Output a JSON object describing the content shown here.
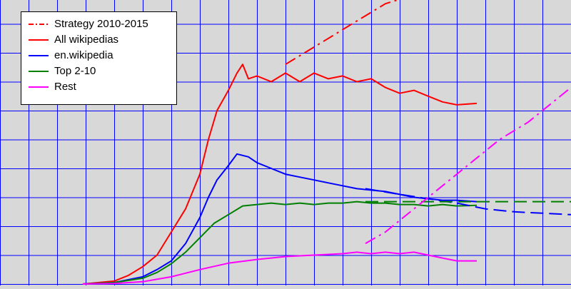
{
  "chart_data": {
    "type": "line",
    "title": "",
    "xlabel": "",
    "ylabel": "",
    "grid": true,
    "legend_position": "top-left",
    "xlim": [
      0,
      20
    ],
    "ylim": [
      0,
      10
    ],
    "series": [
      {
        "name": "Strategy 2010-2015",
        "style": "dash-dot",
        "color": "#ff0000",
        "points": [
          [
            10,
            7.6
          ],
          [
            10.5,
            7.9
          ],
          [
            11.5,
            8.5
          ],
          [
            12.5,
            9.1
          ],
          [
            13.5,
            9.7
          ],
          [
            14.5,
            10
          ]
        ]
      },
      {
        "name": "All wikipedias",
        "style": "solid",
        "color": "#ff0000",
        "points": [
          [
            2.9,
            0
          ],
          [
            4,
            0.1
          ],
          [
            4.5,
            0.3
          ],
          [
            5,
            0.6
          ],
          [
            5.5,
            1
          ],
          [
            6,
            1.8
          ],
          [
            6.5,
            2.6
          ],
          [
            7,
            3.8
          ],
          [
            7.3,
            5
          ],
          [
            7.6,
            6
          ],
          [
            8,
            6.7
          ],
          [
            8.3,
            7.3
          ],
          [
            8.5,
            7.6
          ],
          [
            8.7,
            7.1
          ],
          [
            9,
            7.2
          ],
          [
            9.5,
            7.0
          ],
          [
            10,
            7.3
          ],
          [
            10.5,
            7.0
          ],
          [
            11,
            7.3
          ],
          [
            11.5,
            7.1
          ],
          [
            12,
            7.2
          ],
          [
            12.5,
            7.0
          ],
          [
            13,
            7.1
          ],
          [
            13.5,
            6.8
          ],
          [
            14,
            6.6
          ],
          [
            14.5,
            6.7
          ],
          [
            15,
            6.5
          ],
          [
            15.5,
            6.3
          ],
          [
            16,
            6.2
          ],
          [
            16.7,
            6.25
          ]
        ]
      },
      {
        "name": "en.wikipedia",
        "style": "solid",
        "color": "#0000ff",
        "points": [
          [
            2.9,
            0
          ],
          [
            4,
            0.05
          ],
          [
            5,
            0.25
          ],
          [
            5.5,
            0.5
          ],
          [
            6,
            0.8
          ],
          [
            6.5,
            1.4
          ],
          [
            7,
            2.3
          ],
          [
            7.3,
            3.0
          ],
          [
            7.6,
            3.6
          ],
          [
            8,
            4.1
          ],
          [
            8.3,
            4.5
          ],
          [
            8.7,
            4.4
          ],
          [
            9,
            4.2
          ],
          [
            9.5,
            4.0
          ],
          [
            10,
            3.8
          ],
          [
            10.5,
            3.7
          ],
          [
            11,
            3.6
          ],
          [
            11.5,
            3.5
          ],
          [
            12,
            3.4
          ],
          [
            12.5,
            3.3
          ],
          [
            13,
            3.25
          ],
          [
            13.5,
            3.2
          ],
          [
            14,
            3.1
          ],
          [
            14.5,
            3.0
          ],
          [
            15,
            2.95
          ],
          [
            15.5,
            2.9
          ],
          [
            16,
            2.9
          ],
          [
            16.7,
            2.85
          ]
        ]
      },
      {
        "name": "Top 2-10",
        "style": "solid",
        "color": "#008000",
        "points": [
          [
            2.9,
            0
          ],
          [
            4,
            0.05
          ],
          [
            5,
            0.2
          ],
          [
            5.5,
            0.4
          ],
          [
            6,
            0.7
          ],
          [
            6.5,
            1.1
          ],
          [
            7,
            1.6
          ],
          [
            7.5,
            2.1
          ],
          [
            8,
            2.4
          ],
          [
            8.5,
            2.7
          ],
          [
            9,
            2.75
          ],
          [
            9.5,
            2.8
          ],
          [
            10,
            2.75
          ],
          [
            10.5,
            2.8
          ],
          [
            11,
            2.75
          ],
          [
            11.5,
            2.8
          ],
          [
            12,
            2.8
          ],
          [
            12.5,
            2.85
          ],
          [
            13,
            2.8
          ],
          [
            13.5,
            2.8
          ],
          [
            14,
            2.75
          ],
          [
            14.5,
            2.75
          ],
          [
            15,
            2.7
          ],
          [
            15.5,
            2.75
          ],
          [
            16,
            2.7
          ],
          [
            16.7,
            2.72
          ]
        ]
      },
      {
        "name": "Rest",
        "style": "solid",
        "color": "#ff00ff",
        "points": [
          [
            2.9,
            0
          ],
          [
            4,
            0.02
          ],
          [
            5,
            0.08
          ],
          [
            6,
            0.25
          ],
          [
            7,
            0.5
          ],
          [
            8,
            0.72
          ],
          [
            9,
            0.85
          ],
          [
            10,
            0.95
          ],
          [
            11,
            1.0
          ],
          [
            12,
            1.05
          ],
          [
            12.5,
            1.1
          ],
          [
            13,
            1.05
          ],
          [
            13.5,
            1.1
          ],
          [
            14,
            1.05
          ],
          [
            14.5,
            1.1
          ],
          [
            15,
            1.0
          ],
          [
            15.5,
            0.9
          ],
          [
            16,
            0.8
          ],
          [
            16.5,
            0.8
          ],
          [
            16.7,
            0.8
          ]
        ]
      },
      {
        "name": "",
        "style": "dashed",
        "color": "#0000ff",
        "points": [
          [
            12.8,
            3.3
          ],
          [
            14,
            3.1
          ],
          [
            15,
            2.95
          ],
          [
            16,
            2.8
          ],
          [
            17,
            2.6
          ],
          [
            18,
            2.5
          ],
          [
            19,
            2.45
          ],
          [
            20,
            2.4
          ]
        ]
      },
      {
        "name": "",
        "style": "dashed",
        "color": "#008000",
        "points": [
          [
            12.8,
            2.85
          ],
          [
            14,
            2.85
          ],
          [
            16,
            2.85
          ],
          [
            18,
            2.85
          ],
          [
            20,
            2.85
          ]
        ]
      },
      {
        "name": "",
        "style": "dash-dot",
        "color": "#ff00ff",
        "points": [
          [
            12.8,
            1.4
          ],
          [
            13.5,
            1.8
          ],
          [
            14,
            2.2
          ],
          [
            14.5,
            2.6
          ],
          [
            15,
            3.0
          ],
          [
            15.5,
            3.4
          ],
          [
            16,
            3.8
          ],
          [
            16.5,
            4.2
          ],
          [
            17,
            4.6
          ],
          [
            17.5,
            5.0
          ],
          [
            18,
            5.3
          ],
          [
            18.5,
            5.6
          ],
          [
            19,
            6.0
          ],
          [
            19.5,
            6.4
          ],
          [
            20,
            6.8
          ]
        ]
      }
    ]
  },
  "legend": {
    "items": [
      {
        "label": "Strategy 2010-2015",
        "color": "#ff0000",
        "style": "dash-dot"
      },
      {
        "label": "All wikipedias",
        "color": "#ff0000",
        "style": "solid"
      },
      {
        "label": "en.wikipedia",
        "color": "#0000ff",
        "style": "solid"
      },
      {
        "label": "Top 2-10",
        "color": "#008000",
        "style": "solid"
      },
      {
        "label": "Rest",
        "color": "#ff00ff",
        "style": "solid"
      }
    ]
  },
  "colors": {
    "background": "#d8d8d8",
    "grid": "#0000ff"
  }
}
